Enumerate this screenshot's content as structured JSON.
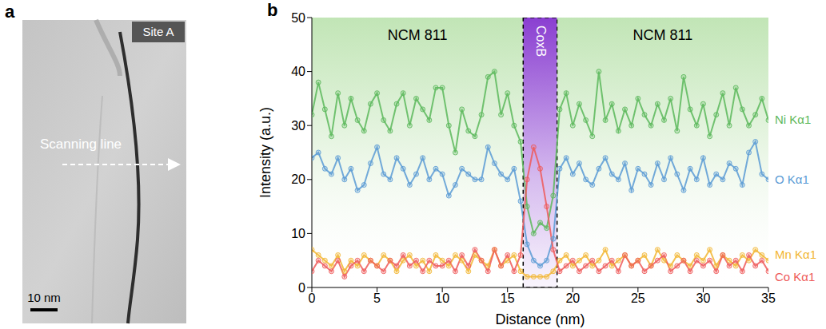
{
  "image_panel": {
    "letter": "a",
    "label": "Site A",
    "arrow_label": "Scanning line",
    "scale_bar": "10 nm"
  },
  "chart_data": {
    "type": "line",
    "letter": "b",
    "x_label": "Distance (nm)",
    "y_label": "Intensity (a.u.)",
    "xlim": [
      0,
      35
    ],
    "xticks": [
      0,
      5,
      10,
      15,
      20,
      25,
      30,
      35
    ],
    "ylim": [
      0,
      50
    ],
    "yticks": [
      0,
      10,
      20,
      30,
      40,
      50
    ],
    "marker": "circle",
    "line_style": "solid",
    "regions": [
      {
        "label": "NCM 811",
        "x": [
          0,
          16.2
        ],
        "color": "#8fd07a"
      },
      {
        "label": "CoxB",
        "x": [
          16.2,
          18.8
        ],
        "color": "#8a3fd1"
      },
      {
        "label": "NCM 811",
        "x": [
          18.8,
          35
        ],
        "color": "#8fd07a"
      }
    ],
    "x": [
      0,
      0.5,
      1,
      1.5,
      2,
      2.5,
      3,
      3.5,
      4,
      4.5,
      5,
      5.5,
      6,
      6.5,
      7,
      7.5,
      8,
      8.5,
      9,
      9.5,
      10,
      10.5,
      11,
      11.5,
      12,
      12.5,
      13,
      13.5,
      14,
      14.5,
      15,
      15.5,
      16,
      16.5,
      17,
      17.5,
      18,
      18.5,
      19,
      19.5,
      20,
      20.5,
      21,
      21.5,
      22,
      22.5,
      23,
      23.5,
      24,
      24.5,
      25,
      25.5,
      26,
      26.5,
      27,
      27.5,
      28,
      28.5,
      29,
      29.5,
      30,
      30.5,
      31,
      31.5,
      32,
      32.5,
      33,
      33.5,
      34,
      34.5,
      35
    ],
    "series": [
      {
        "name": "Ni Kα1",
        "color": "#5cb85c",
        "values": [
          32,
          38,
          33,
          28,
          36,
          30,
          35,
          31,
          29,
          34,
          36,
          31,
          29,
          34,
          36,
          30,
          35,
          33,
          31,
          37,
          37,
          30,
          25,
          33,
          29,
          28,
          32,
          39,
          40,
          32,
          36,
          30,
          27,
          15,
          10,
          12,
          11,
          17,
          33,
          36,
          30,
          34,
          31,
          28,
          40,
          31,
          34,
          29,
          33,
          30,
          35,
          32,
          30,
          34,
          31,
          35,
          29,
          39,
          33,
          30,
          34,
          28,
          32,
          36,
          30,
          37,
          33,
          30,
          32,
          35,
          31
        ]
      },
      {
        "name": "O Kα1",
        "color": "#5b9bd5",
        "values": [
          24,
          25,
          22,
          21,
          24,
          20,
          22,
          18,
          19,
          23,
          26,
          21,
          20,
          24,
          22,
          19,
          21,
          24,
          20,
          22,
          21,
          17,
          19,
          22,
          21,
          20,
          20,
          26,
          23,
          21,
          20,
          22,
          16,
          8,
          5,
          4,
          5,
          9,
          22,
          24,
          21,
          23,
          20,
          19,
          22,
          24,
          21,
          20,
          23,
          18,
          22,
          21,
          19,
          23,
          20,
          24,
          21,
          18,
          22,
          20,
          24,
          19,
          21,
          20,
          23,
          22,
          19,
          25,
          27,
          21,
          20
        ]
      },
      {
        "name": "Mn Kα1",
        "color": "#f2b632",
        "values": [
          7,
          6,
          5,
          4,
          6,
          3,
          5,
          4,
          6,
          5,
          4,
          6,
          5,
          3,
          5,
          6,
          4,
          5,
          3,
          6,
          5,
          4,
          6,
          5,
          3,
          6,
          5,
          4,
          7,
          4,
          5,
          6,
          3,
          2,
          2,
          2,
          2,
          3,
          5,
          6,
          4,
          5,
          6,
          4,
          5,
          7,
          4,
          5,
          6,
          4,
          5,
          6,
          4,
          7,
          5,
          4,
          6,
          5,
          4,
          6,
          5,
          7,
          4,
          6,
          5,
          4,
          6,
          5,
          7,
          6,
          5
        ]
      },
      {
        "name": "Co Kα1",
        "color": "#ee5a5a",
        "values": [
          3,
          5,
          4,
          3,
          5,
          2,
          4,
          5,
          3,
          5,
          4,
          3,
          5,
          4,
          6,
          4,
          5,
          3,
          5,
          4,
          4,
          5,
          3,
          6,
          4,
          7,
          5,
          3,
          7,
          4,
          6,
          3,
          6,
          20,
          26,
          22,
          15,
          7,
          3,
          4,
          5,
          3,
          4,
          5,
          3,
          4,
          5,
          3,
          6,
          4,
          5,
          3,
          4,
          5,
          6,
          3,
          4,
          5,
          3,
          5,
          4,
          5,
          3,
          6,
          4,
          5,
          3,
          6,
          4,
          5,
          3
        ]
      }
    ]
  }
}
